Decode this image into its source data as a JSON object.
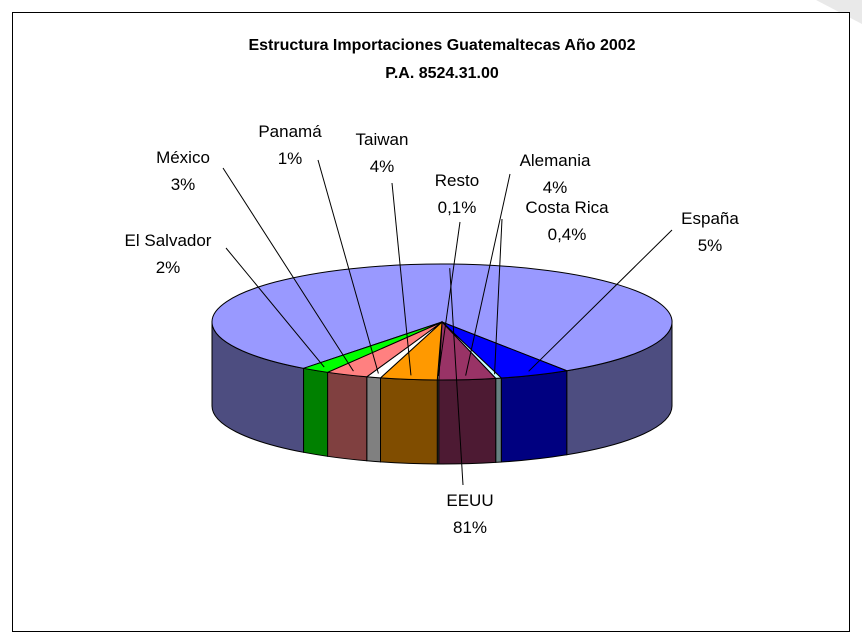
{
  "chart_data": {
    "type": "pie",
    "title": "Estructura Importaciones Guatemaltecas Año 2002",
    "subtitle": "P.A. 8524.31.00",
    "slices": [
      {
        "name": "EEUU",
        "label": "81%",
        "value": 81,
        "color": "#9999ff",
        "side_color": "#4d4d80"
      },
      {
        "name": "España",
        "label": "5%",
        "value": 5,
        "color": "#0000ff",
        "side_color": "#000080"
      },
      {
        "name": "Costa Rica",
        "label": "0,4%",
        "value": 0.4,
        "color": "#ccffff",
        "side_color": "#668080"
      },
      {
        "name": "Alemania",
        "label": "4%",
        "value": 4,
        "color": "#993366",
        "side_color": "#4d1a33"
      },
      {
        "name": "Resto",
        "label": "0,1%",
        "value": 0.1,
        "color": "#ffffcc",
        "side_color": "#808066"
      },
      {
        "name": "Taiwan",
        "label": "4%",
        "value": 4,
        "color": "#ff9900",
        "side_color": "#804d00"
      },
      {
        "name": "Panamá",
        "label": "1%",
        "value": 1,
        "color": "#ffffff",
        "side_color": "#808080"
      },
      {
        "name": "México",
        "label": "3%",
        "value": 3,
        "color": "#ff8080",
        "side_color": "#804040"
      },
      {
        "name": "El Salvador",
        "label": "2%",
        "value": 2,
        "color": "#00ff00",
        "side_color": "#008000"
      }
    ]
  }
}
